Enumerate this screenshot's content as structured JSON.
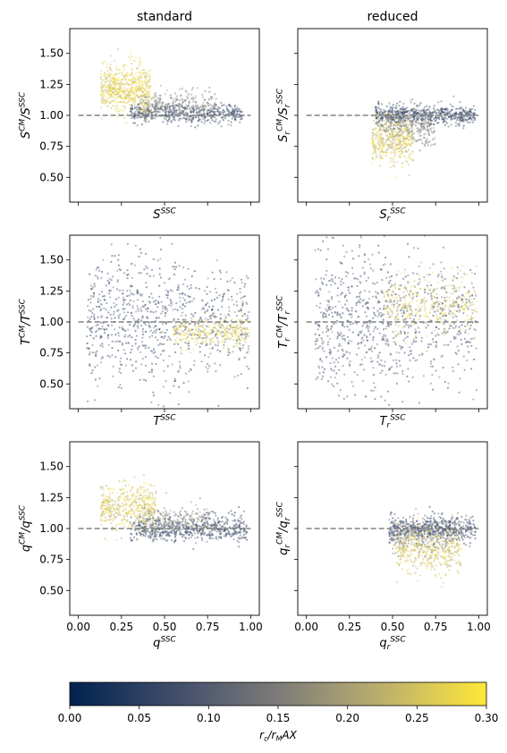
{
  "chart_data": {
    "type": "scatter",
    "column_titles": [
      "standard",
      "reduced"
    ],
    "colormap": "cividis",
    "colorbar": {
      "label": "r_c/r_MAX",
      "range": [
        0.0,
        0.3
      ],
      "ticks": [
        "0.00",
        "0.05",
        "0.10",
        "0.15",
        "0.20",
        "0.25",
        "0.30"
      ]
    },
    "xlim": [
      -0.05,
      1.05
    ],
    "ylim": [
      0.3,
      1.7
    ],
    "xticks": [
      "0.00",
      "0.25",
      "0.50",
      "0.75",
      "1.00"
    ],
    "yticks": [
      "0.50",
      "0.75",
      "1.00",
      "1.25",
      "1.50"
    ],
    "reference_line": {
      "y": 1.0,
      "x_range": [
        0.0,
        1.0
      ],
      "style": "dashed",
      "color": "#808080"
    },
    "panels": [
      {
        "row": 0,
        "col": 0,
        "xlabel": "S^{SSC}",
        "ylabel": "S^{CM}/S^{SSC}",
        "show_xticklabels": false,
        "show_yticklabels": true,
        "point_groups": [
          {
            "x_range": [
              0.13,
              0.42
            ],
            "y_center": 1.22,
            "y_spread": 0.09,
            "c_range": [
              0.22,
              0.3
            ],
            "n": 600
          },
          {
            "x_range": [
              0.3,
              0.95
            ],
            "y_center": 1.02,
            "y_spread": 0.04,
            "c_range": [
              0.0,
              0.12
            ],
            "n": 500
          },
          {
            "x_range": [
              0.35,
              0.8
            ],
            "y_center": 1.08,
            "y_spread": 0.06,
            "c_range": [
              0.1,
              0.2
            ],
            "n": 250
          }
        ]
      },
      {
        "row": 0,
        "col": 1,
        "xlabel": "S_r^{SSC}",
        "ylabel": "S_r^{CM}/S_r^{SSC}",
        "show_xticklabels": false,
        "show_yticklabels": false,
        "point_groups": [
          {
            "x_range": [
              0.4,
              0.98
            ],
            "y_center": 1.0,
            "y_spread": 0.04,
            "c_range": [
              0.0,
              0.12
            ],
            "n": 600
          },
          {
            "x_range": [
              0.38,
              0.62
            ],
            "y_center": 0.8,
            "y_spread": 0.1,
            "c_range": [
              0.2,
              0.3
            ],
            "n": 400
          },
          {
            "x_range": [
              0.42,
              0.75
            ],
            "y_center": 0.9,
            "y_spread": 0.08,
            "c_range": [
              0.1,
              0.2
            ],
            "n": 250
          }
        ]
      },
      {
        "row": 1,
        "col": 0,
        "xlabel": "T^{SSC}",
        "ylabel": "T^{CM}/T^{SSC}",
        "show_xticklabels": false,
        "show_yticklabels": true,
        "point_groups": [
          {
            "x_range": [
              0.05,
              0.99
            ],
            "y_center": 1.0,
            "y_spread": 0.22,
            "c_range": [
              0.0,
              0.15
            ],
            "n": 700
          },
          {
            "x_range": [
              0.55,
              0.99
            ],
            "y_center": 0.92,
            "y_spread": 0.06,
            "c_range": [
              0.2,
              0.3
            ],
            "n": 300
          },
          {
            "x_range": [
              0.05,
              0.6
            ],
            "y_center": 1.1,
            "y_spread": 0.4,
            "c_range": [
              0.0,
              0.12
            ],
            "n": 150
          }
        ]
      },
      {
        "row": 1,
        "col": 1,
        "xlabel": "T_r^{SSC}",
        "ylabel": "T_r^{CM}/T_r^{SSC}",
        "show_xticklabels": false,
        "show_yticklabels": false,
        "point_groups": [
          {
            "x_range": [
              0.05,
              0.99
            ],
            "y_center": 1.0,
            "y_spread": 0.25,
            "c_range": [
              0.0,
              0.15
            ],
            "n": 700
          },
          {
            "x_range": [
              0.45,
              0.99
            ],
            "y_center": 1.15,
            "y_spread": 0.12,
            "c_range": [
              0.2,
              0.3
            ],
            "n": 350
          },
          {
            "x_range": [
              0.05,
              0.5
            ],
            "y_center": 1.1,
            "y_spread": 0.45,
            "c_range": [
              0.0,
              0.12
            ],
            "n": 180
          }
        ]
      },
      {
        "row": 2,
        "col": 0,
        "xlabel": "q^{SSC}",
        "ylabel": "q^{CM}/q^{SSC}",
        "show_xticklabels": true,
        "show_yticklabels": true,
        "point_groups": [
          {
            "x_range": [
              0.13,
              0.45
            ],
            "y_center": 1.18,
            "y_spread": 0.09,
            "c_range": [
              0.2,
              0.3
            ],
            "n": 450
          },
          {
            "x_range": [
              0.3,
              0.98
            ],
            "y_center": 1.0,
            "y_spread": 0.05,
            "c_range": [
              0.0,
              0.12
            ],
            "n": 550
          },
          {
            "x_range": [
              0.35,
              0.8
            ],
            "y_center": 1.06,
            "y_spread": 0.06,
            "c_range": [
              0.1,
              0.2
            ],
            "n": 250
          }
        ]
      },
      {
        "row": 2,
        "col": 1,
        "xlabel": "q_r^{SSC}",
        "ylabel": "q_r^{CM}/q_r^{SSC}",
        "show_xticklabels": true,
        "show_yticklabels": false,
        "point_groups": [
          {
            "x_range": [
              0.48,
              0.98
            ],
            "y_center": 1.0,
            "y_spread": 0.05,
            "c_range": [
              0.0,
              0.12
            ],
            "n": 550
          },
          {
            "x_range": [
              0.52,
              0.9
            ],
            "y_center": 0.83,
            "y_spread": 0.1,
            "c_range": [
              0.2,
              0.3
            ],
            "n": 400
          },
          {
            "x_range": [
              0.5,
              0.85
            ],
            "y_center": 0.92,
            "y_spread": 0.07,
            "c_range": [
              0.1,
              0.2
            ],
            "n": 200
          }
        ]
      }
    ]
  }
}
